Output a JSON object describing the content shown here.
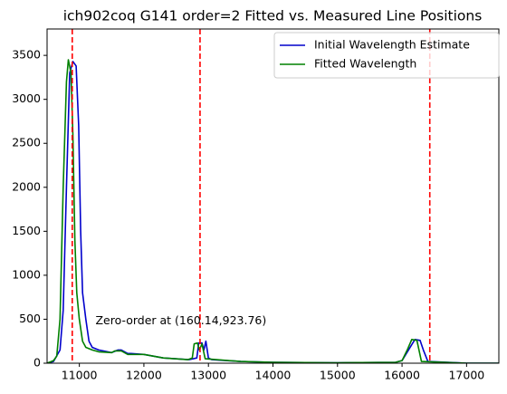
{
  "chart_data": {
    "type": "line",
    "title": "ich902coq G141 order=2 Fitted vs. Measured Line Positions",
    "xlim": [
      10500,
      17500
    ],
    "ylim": [
      0,
      3800
    ],
    "xticks": [
      11000,
      12000,
      13000,
      14000,
      15000,
      16000,
      17000
    ],
    "yticks": [
      0,
      500,
      1000,
      1500,
      2000,
      2500,
      3000,
      3500
    ],
    "legend": "upper right",
    "series": [
      {
        "name": "Initial Wavelength Estimate",
        "color": "#0000cc",
        "x": [
          10500,
          10600,
          10700,
          10750,
          10800,
          10850,
          10900,
          10950,
          10990,
          11020,
          11050,
          11100,
          11150,
          11200,
          11300,
          11500,
          11600,
          11650,
          11750,
          11800,
          12000,
          12300,
          12700,
          12820,
          12850,
          12900,
          12930,
          12960,
          13000,
          13050,
          13500,
          14000,
          15000,
          15900,
          16000,
          16100,
          16200,
          16280,
          16330,
          16400,
          17000,
          17500
        ],
        "values": [
          0,
          20,
          150,
          600,
          2000,
          3300,
          3430,
          3380,
          2700,
          1500,
          800,
          500,
          250,
          180,
          150,
          120,
          150,
          150,
          110,
          110,
          100,
          60,
          40,
          60,
          230,
          230,
          150,
          250,
          60,
          40,
          20,
          10,
          5,
          10,
          30,
          150,
          270,
          260,
          150,
          20,
          0,
          0
        ]
      },
      {
        "name": "Fitted Wavelength",
        "color": "#008000",
        "x": [
          10500,
          10600,
          10650,
          10700,
          10750,
          10800,
          10830,
          10870,
          10900,
          10930,
          10960,
          11000,
          11050,
          11100,
          11200,
          11300,
          11500,
          11550,
          11650,
          11750,
          12000,
          12300,
          12680,
          12750,
          12780,
          12830,
          12860,
          12900,
          12950,
          13500,
          14000,
          15000,
          15900,
          16000,
          16080,
          16150,
          16230,
          16300,
          17000,
          17500
        ],
        "values": [
          0,
          30,
          80,
          500,
          2000,
          3200,
          3450,
          3300,
          2600,
          1400,
          800,
          500,
          250,
          180,
          150,
          130,
          120,
          140,
          140,
          100,
          100,
          60,
          40,
          60,
          220,
          230,
          150,
          220,
          50,
          20,
          10,
          5,
          10,
          30,
          150,
          270,
          260,
          20,
          0,
          0
        ]
      }
    ],
    "vlines": [
      10890,
      12870,
      16430
    ],
    "vline_color": "#ff0000",
    "annotations": [
      {
        "text": "Zero-order at (160.14,923.76)",
        "x": 11250,
        "y": 480
      }
    ]
  }
}
